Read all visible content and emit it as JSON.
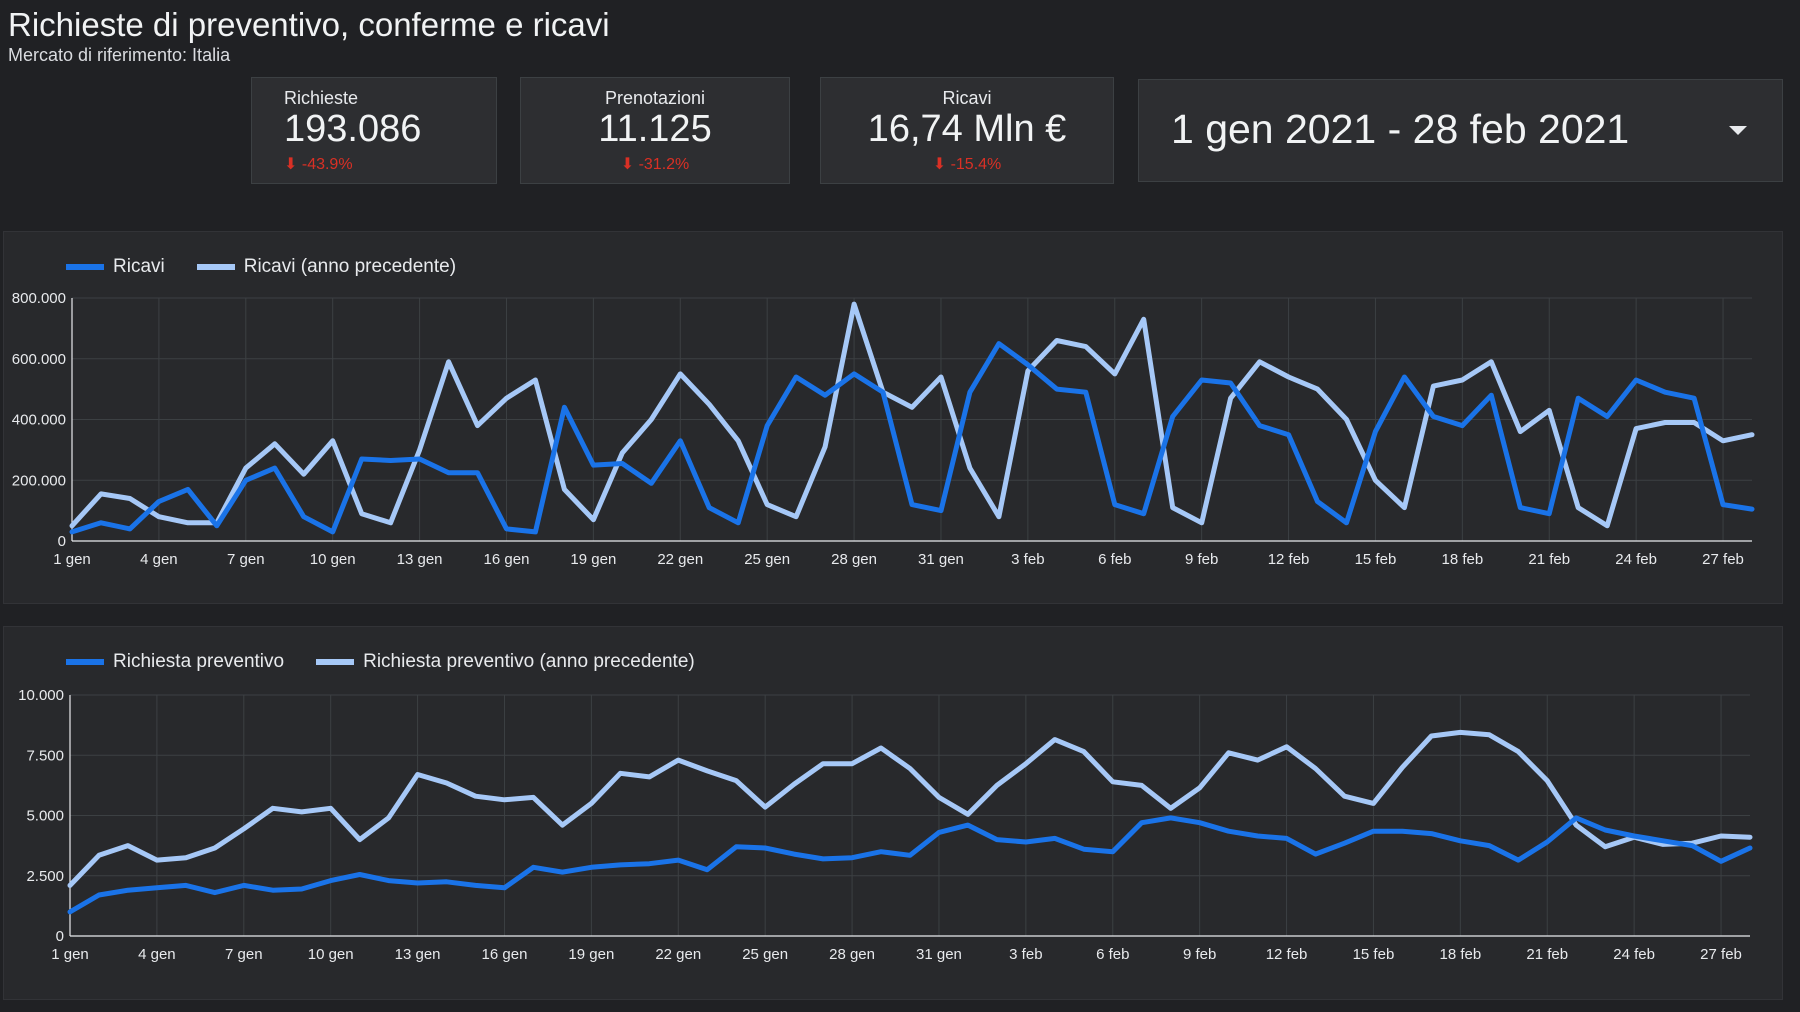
{
  "page": {
    "title": "Richieste di preventivo, conferme e ricavi",
    "subtitle": "Mercato di riferimento: Italia"
  },
  "kpis": [
    {
      "label": "Richieste",
      "value": "193.086",
      "delta": "-43.9%",
      "arrow": "⬇"
    },
    {
      "label": "Prenotazioni",
      "value": "11.125",
      "delta": "-31.2%",
      "arrow": "⬇"
    },
    {
      "label": "Ricavi",
      "value": "16,74 Mln €",
      "delta": "-15.4%",
      "arrow": "⬇"
    }
  ],
  "date_range": {
    "label": "1 gen 2021 - 28 feb 2021",
    "icon": "dropdown-caret-icon"
  },
  "colors": {
    "current": "#1a73e8",
    "previous": "#a6c8f7",
    "negative": "#d93025",
    "grid": "#3c4043"
  },
  "chart_data": [
    {
      "type": "line",
      "x_ticks": [
        "1 gen",
        "4 gen",
        "7 gen",
        "10 gen",
        "13 gen",
        "16 gen",
        "19 gen",
        "22 gen",
        "25 gen",
        "28 gen",
        "31 gen",
        "3 feb",
        "6 feb",
        "9 feb",
        "12 feb",
        "15 feb",
        "18 feb",
        "21 feb",
        "24 feb",
        "27 feb"
      ],
      "y_ticks": [
        "0",
        "200.000",
        "400.000",
        "600.000",
        "800.000"
      ],
      "ylim": [
        0,
        800000
      ],
      "grid": true,
      "legend_position": "top-left",
      "series": [
        {
          "name": "Ricavi",
          "color": "#1a73e8",
          "values": [
            30000,
            60000,
            40000,
            130000,
            170000,
            50000,
            200000,
            240000,
            80000,
            30000,
            270000,
            265000,
            270000,
            225000,
            225000,
            40000,
            30000,
            440000,
            250000,
            255000,
            190000,
            330000,
            110000,
            60000,
            380000,
            540000,
            480000,
            550000,
            490000,
            120000,
            100000,
            490000,
            650000,
            580000,
            500000,
            490000,
            120000,
            90000,
            410000,
            530000,
            520000,
            380000,
            350000,
            130000,
            60000,
            360000,
            540000,
            410000,
            380000,
            480000,
            110000,
            90000,
            470000,
            410000,
            530000,
            490000,
            470000,
            120000,
            105000
          ]
        },
        {
          "name": "Ricavi (anno precedente)",
          "color": "#a6c8f7",
          "values": [
            50000,
            155000,
            140000,
            80000,
            60000,
            60000,
            240000,
            320000,
            220000,
            330000,
            90000,
            60000,
            300000,
            590000,
            380000,
            470000,
            530000,
            170000,
            70000,
            290000,
            400000,
            550000,
            450000,
            330000,
            120000,
            80000,
            310000,
            780000,
            490000,
            440000,
            540000,
            240000,
            80000,
            560000,
            660000,
            640000,
            550000,
            730000,
            110000,
            60000,
            470000,
            590000,
            540000,
            500000,
            400000,
            200000,
            110000,
            510000,
            530000,
            590000,
            360000,
            430000,
            110000,
            50000,
            370000,
            390000,
            390000,
            330000,
            350000
          ]
        }
      ]
    },
    {
      "type": "line",
      "x_ticks": [
        "1 gen",
        "4 gen",
        "7 gen",
        "10 gen",
        "13 gen",
        "16 gen",
        "19 gen",
        "22 gen",
        "25 gen",
        "28 gen",
        "31 gen",
        "3 feb",
        "6 feb",
        "9 feb",
        "12 feb",
        "15 feb",
        "18 feb",
        "21 feb",
        "24 feb",
        "27 feb"
      ],
      "y_ticks": [
        "0",
        "2.500",
        "5.000",
        "7.500",
        "10.000"
      ],
      "ylim": [
        0,
        10000
      ],
      "grid": true,
      "legend_position": "top-left",
      "series": [
        {
          "name": "Richiesta preventivo",
          "color": "#1a73e8",
          "values": [
            1000,
            1700,
            1900,
            2000,
            2100,
            1800,
            2100,
            1900,
            1950,
            2300,
            2550,
            2300,
            2200,
            2250,
            2100,
            2000,
            2850,
            2650,
            2850,
            2950,
            3000,
            3150,
            2750,
            3700,
            3650,
            3400,
            3200,
            3250,
            3500,
            3350,
            4300,
            4600,
            4000,
            3900,
            4050,
            3600,
            3500,
            4700,
            4900,
            4700,
            4350,
            4150,
            4050,
            3400,
            3850,
            4350,
            4350,
            4250,
            3950,
            3750,
            3150,
            3900,
            4900,
            4400,
            4150,
            3950,
            3750,
            3100,
            3650
          ]
        },
        {
          "name": "Richiesta preventivo (anno precedente)",
          "color": "#a6c8f7",
          "values": [
            2100,
            3350,
            3750,
            3150,
            3250,
            3650,
            4450,
            5300,
            5150,
            5300,
            4000,
            4900,
            6700,
            6350,
            5800,
            5650,
            5750,
            4600,
            5500,
            6750,
            6600,
            7300,
            6850,
            6450,
            5350,
            6300,
            7150,
            7150,
            7800,
            6950,
            5750,
            5050,
            6250,
            7150,
            8150,
            7650,
            6400,
            6250,
            5300,
            6150,
            7600,
            7300,
            7850,
            6950,
            5800,
            5500,
            7000,
            8300,
            8450,
            8350,
            7650,
            6450,
            4600,
            3700,
            4100,
            3800,
            3850,
            4150,
            4100
          ]
        }
      ]
    }
  ]
}
